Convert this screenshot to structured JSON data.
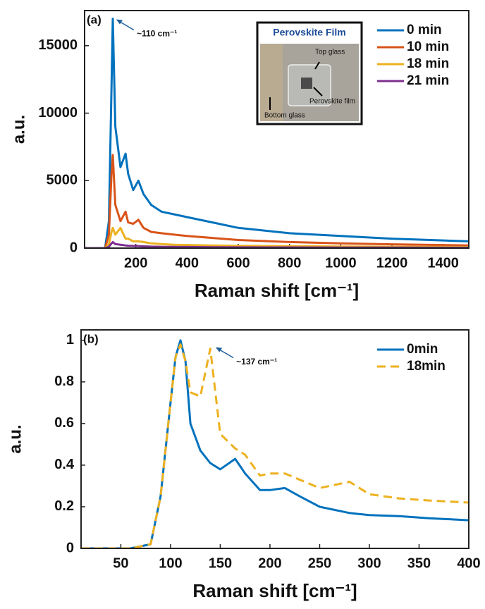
{
  "chart_data": [
    {
      "type": "line",
      "panel_label": "(a)",
      "xlabel": "Raman shift [cm⁻¹]",
      "ylabel": "a.u.",
      "xlim": [
        0,
        1500
      ],
      "xticks": [
        200,
        400,
        600,
        800,
        1000,
        1200,
        1400
      ],
      "ylim": [
        0,
        17600
      ],
      "yticks": [
        0,
        5000,
        10000,
        15000
      ],
      "legend": "upper right",
      "annotation": {
        "text": "~110 cm⁻¹",
        "x": 110,
        "y": 17000
      },
      "inset": {
        "title": "Perovskite Film",
        "labels": [
          "Top glass",
          "Perovskite film",
          "Bottom glass"
        ]
      },
      "x": [
        0,
        50,
        80,
        95,
        105,
        110,
        120,
        140,
        160,
        170,
        190,
        210,
        230,
        260,
        300,
        350,
        400,
        500,
        600,
        800,
        1000,
        1200,
        1500
      ],
      "series": [
        {
          "name": "0 min",
          "color": "#0072bd",
          "values": [
            0,
            0,
            0,
            2000,
            12000,
            17000,
            9000,
            6000,
            7000,
            5500,
            4300,
            5000,
            4000,
            3200,
            2700,
            2500,
            2300,
            1900,
            1500,
            1100,
            900,
            700,
            500
          ]
        },
        {
          "name": "10 min",
          "color": "#d95319",
          "values": [
            0,
            0,
            0,
            1000,
            5500,
            6900,
            3200,
            2000,
            2700,
            1900,
            1800,
            2100,
            1500,
            1200,
            1100,
            1000,
            900,
            750,
            600,
            450,
            350,
            280,
            200
          ]
        },
        {
          "name": "18 min",
          "color": "#edb120",
          "values": [
            0,
            0,
            0,
            300,
            1200,
            1500,
            1000,
            1500,
            700,
            700,
            500,
            500,
            450,
            350,
            300,
            250,
            230,
            200,
            170,
            140,
            120,
            100,
            80
          ]
        },
        {
          "name": "21 min",
          "color": "#7e2f8e",
          "values": [
            0,
            0,
            0,
            100,
            350,
            450,
            300,
            250,
            200,
            180,
            160,
            150,
            130,
            110,
            100,
            90,
            85,
            70,
            60,
            50,
            40,
            35,
            30
          ]
        }
      ]
    },
    {
      "type": "line",
      "panel_label": "(b)",
      "xlabel": "Raman shift [cm⁻¹]",
      "ylabel": "a.u.",
      "xlim": [
        10,
        400
      ],
      "xticks": [
        50,
        100,
        150,
        200,
        250,
        300,
        350,
        400
      ],
      "ylim": [
        0,
        1.05
      ],
      "yticks": [
        0,
        0.2,
        0.4,
        0.6,
        0.8,
        1
      ],
      "legend": "upper right",
      "annotation": {
        "text": "~137 cm⁻¹",
        "x": 142,
        "y": 0.97
      },
      "x": [
        10,
        60,
        80,
        90,
        100,
        105,
        110,
        115,
        120,
        130,
        140,
        150,
        165,
        175,
        190,
        200,
        215,
        230,
        250,
        280,
        300,
        330,
        360,
        400
      ],
      "series": [
        {
          "name": "0min",
          "color": "#0072bd",
          "style": "solid",
          "values": [
            0,
            0,
            0.02,
            0.25,
            0.7,
            0.92,
            1.0,
            0.9,
            0.6,
            0.47,
            0.41,
            0.38,
            0.43,
            0.36,
            0.28,
            0.28,
            0.29,
            0.25,
            0.2,
            0.17,
            0.16,
            0.155,
            0.145,
            0.135
          ]
        },
        {
          "name": "18min",
          "color": "#edb120",
          "style": "dashed",
          "values": [
            0,
            0,
            0.02,
            0.25,
            0.7,
            0.92,
            0.98,
            0.9,
            0.75,
            0.73,
            0.96,
            0.55,
            0.48,
            0.45,
            0.35,
            0.36,
            0.36,
            0.33,
            0.29,
            0.32,
            0.26,
            0.24,
            0.23,
            0.22
          ]
        }
      ]
    }
  ]
}
